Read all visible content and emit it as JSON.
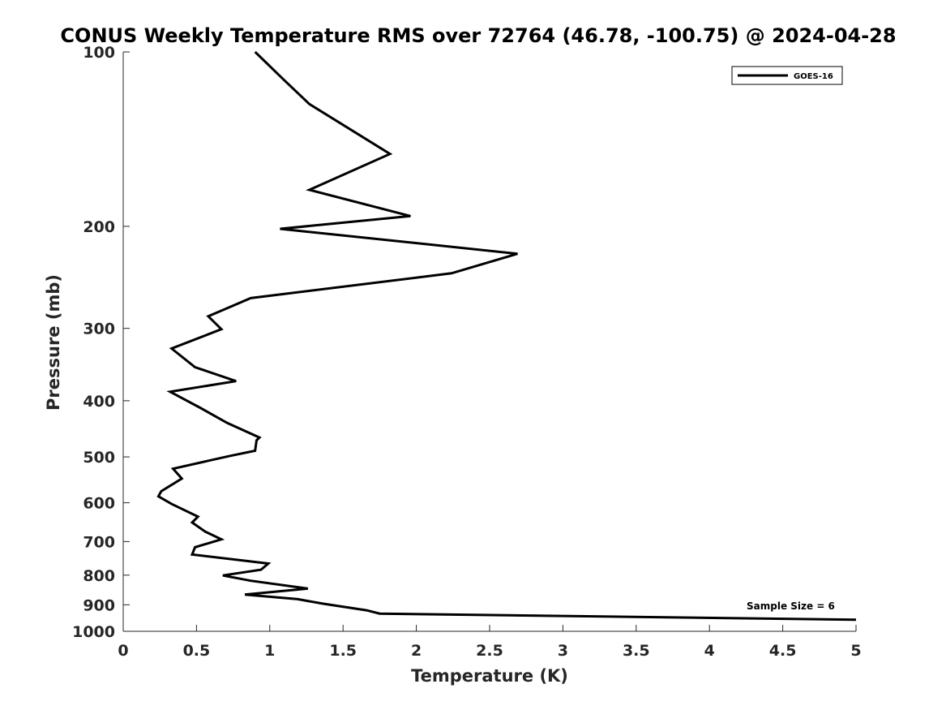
{
  "chart_data": {
    "type": "line",
    "title": "CONUS Weekly Temperature RMS over 72764 (46.78, -100.75) @ 2024-04-28",
    "xlabel": "Temperature (K)",
    "ylabel": "Pressure (mb)",
    "xlim": [
      0,
      5
    ],
    "ylim": [
      100,
      1000
    ],
    "y_scale": "log",
    "y_reversed": true,
    "grid": false,
    "legend_position": "top-right",
    "x_ticks": [
      "0",
      "0.5",
      "1",
      "1.5",
      "2",
      "2.5",
      "3",
      "3.5",
      "4",
      "4.5",
      "5"
    ],
    "y_ticks": [
      "100",
      "200",
      "300",
      "400",
      "500",
      "600",
      "700",
      "800",
      "900",
      "1000"
    ],
    "annotation": "Sample Size = 6",
    "series": [
      {
        "name": "GOES-16",
        "color": "#000000",
        "points": [
          [
            0.9,
            100
          ],
          [
            1.1,
            112
          ],
          [
            1.27,
            123
          ],
          [
            1.82,
            150
          ],
          [
            1.27,
            173
          ],
          [
            1.96,
            192
          ],
          [
            1.07,
            202
          ],
          [
            2.69,
            223
          ],
          [
            2.24,
            241
          ],
          [
            0.87,
            266
          ],
          [
            0.58,
            286
          ],
          [
            0.67,
            301
          ],
          [
            0.33,
            325
          ],
          [
            0.49,
            350
          ],
          [
            0.77,
            370
          ],
          [
            0.32,
            386
          ],
          [
            0.53,
            412
          ],
          [
            0.71,
            437
          ],
          [
            0.93,
            463
          ],
          [
            0.91,
            468
          ],
          [
            0.9,
            488
          ],
          [
            0.73,
            498
          ],
          [
            0.34,
            524
          ],
          [
            0.4,
            545
          ],
          [
            0.26,
            573
          ],
          [
            0.24,
            585
          ],
          [
            0.33,
            603
          ],
          [
            0.51,
            634
          ],
          [
            0.47,
            649
          ],
          [
            0.56,
            673
          ],
          [
            0.67,
            694
          ],
          [
            0.49,
            716
          ],
          [
            0.47,
            737
          ],
          [
            0.99,
            764
          ],
          [
            0.94,
            783
          ],
          [
            0.68,
            801
          ],
          [
            0.87,
            818
          ],
          [
            1.26,
            844
          ],
          [
            0.83,
            864
          ],
          [
            1.19,
            880
          ],
          [
            1.36,
            896
          ],
          [
            1.66,
            920
          ],
          [
            1.75,
            932
          ],
          [
            5.0,
            955
          ]
        ]
      }
    ]
  }
}
